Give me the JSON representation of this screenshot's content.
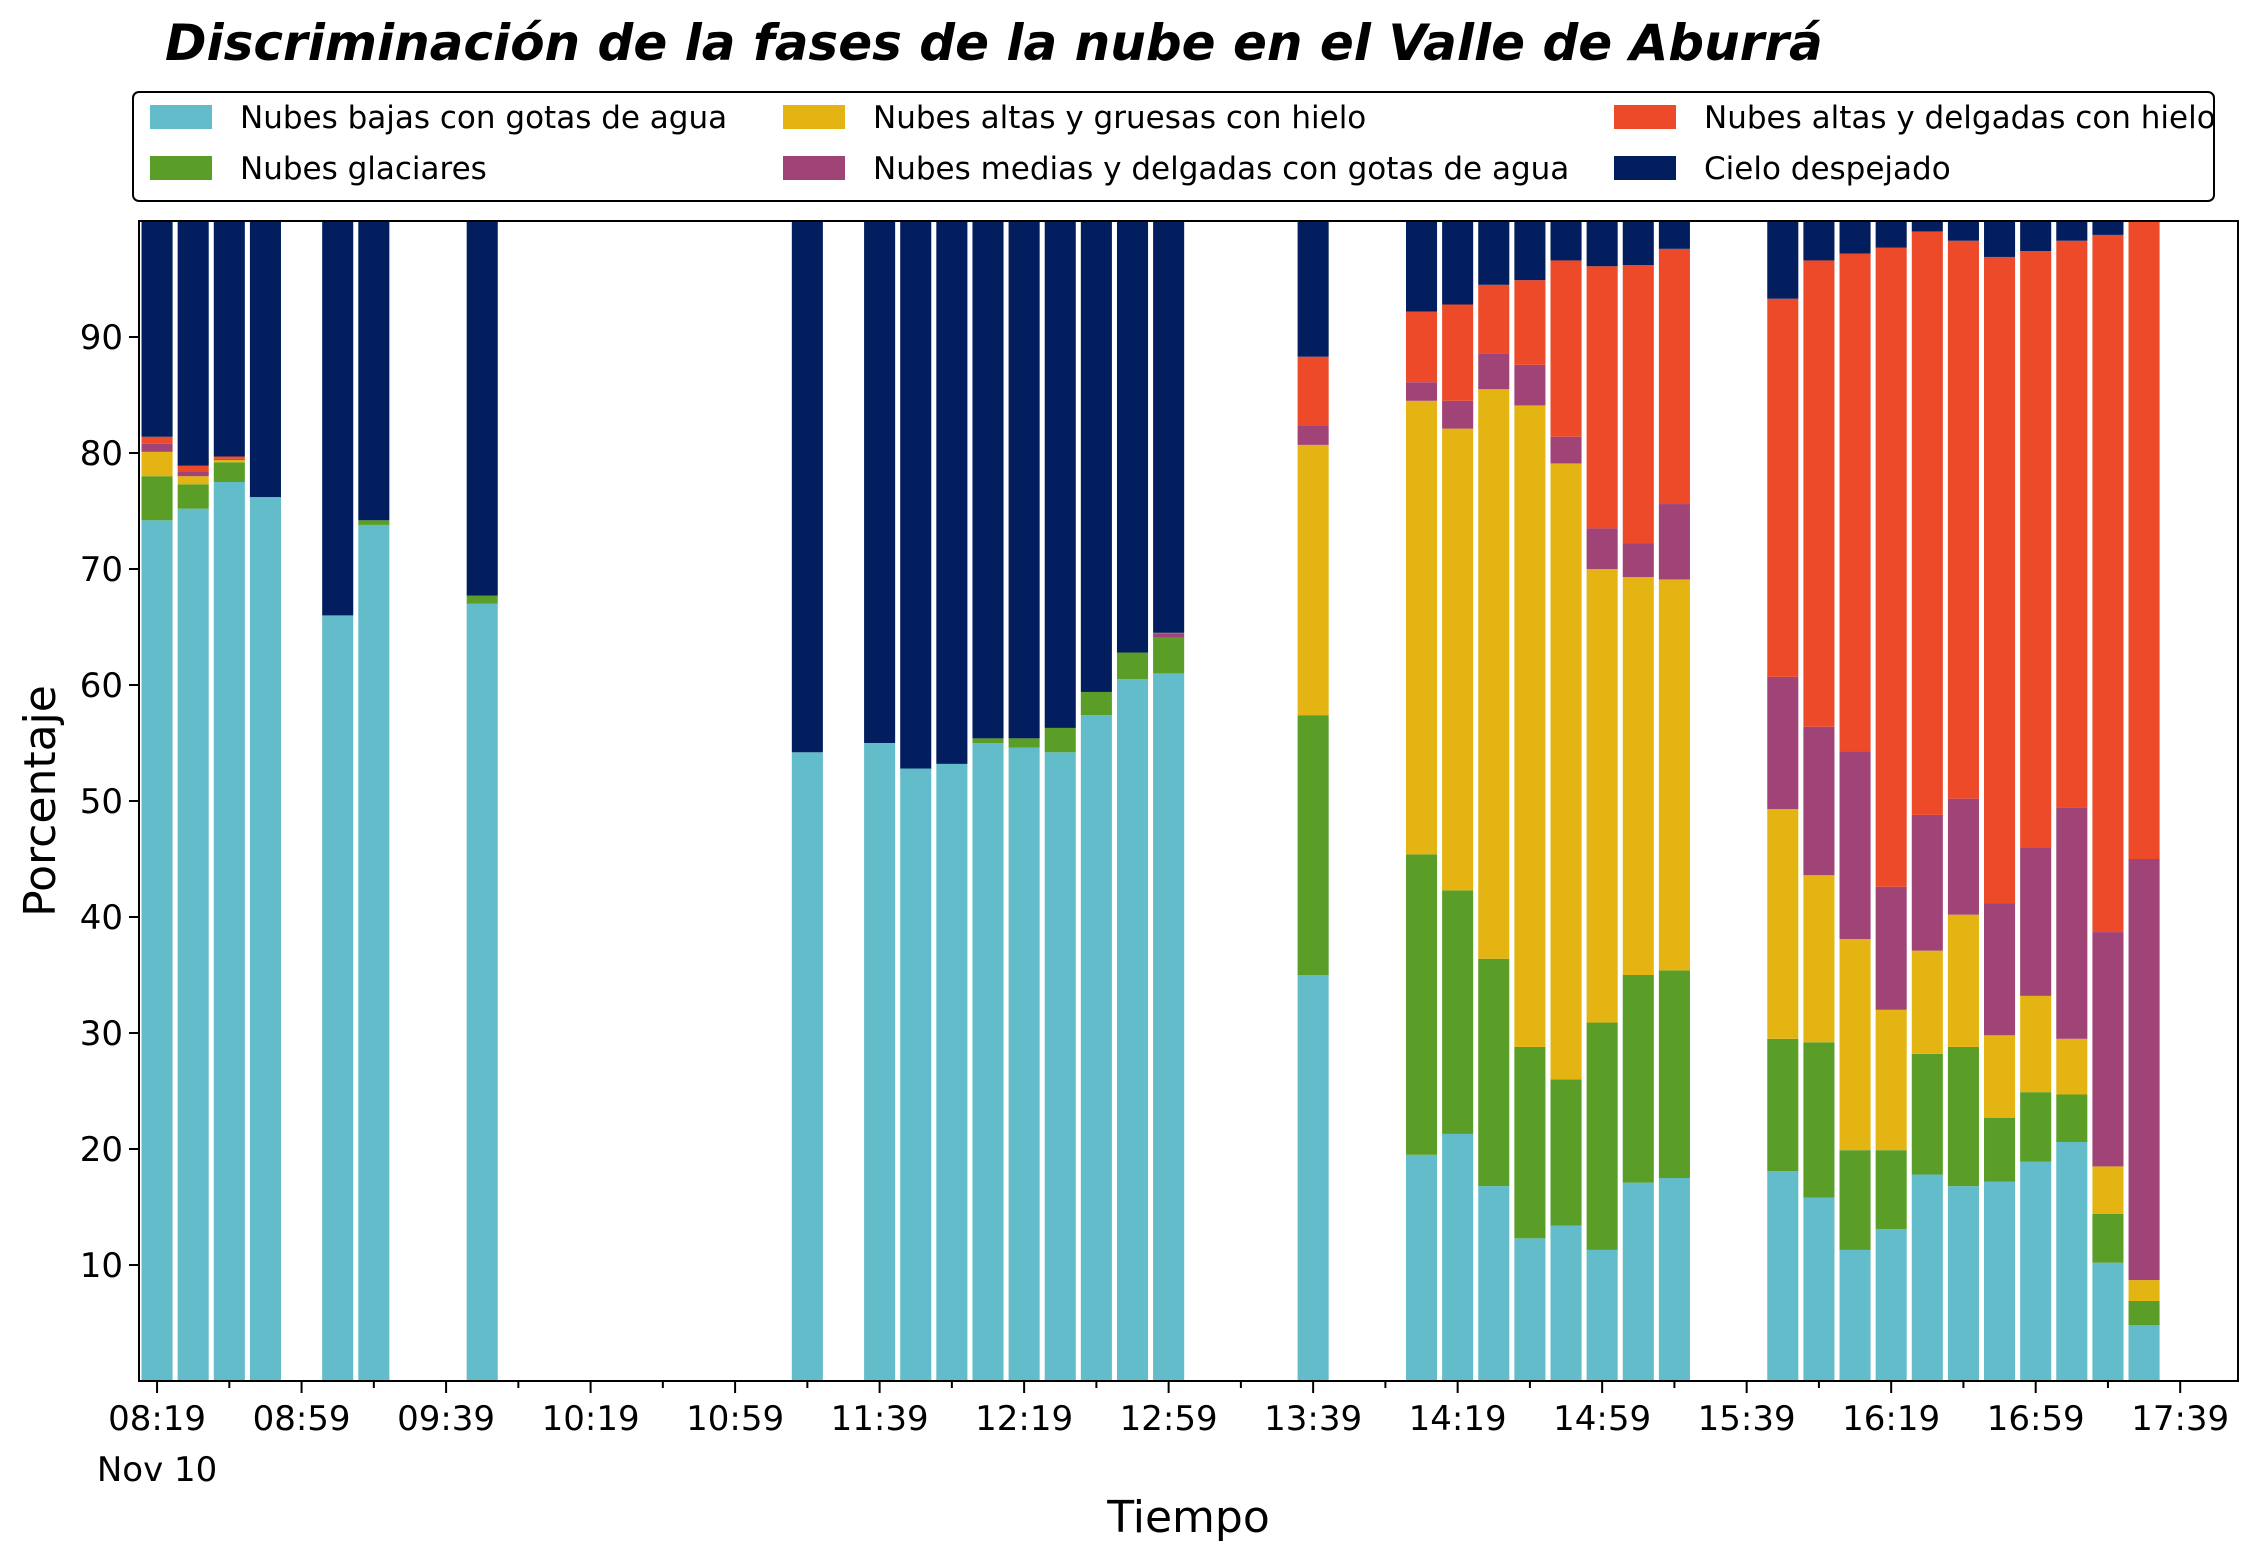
{
  "chart_data": {
    "type": "bar",
    "stacked": true,
    "title": "Discriminación de la fases de la nube en el Valle de Aburrá",
    "xlabel": "Tiempo",
    "ylabel": "Porcentaje",
    "ylim": [
      0,
      100
    ],
    "yticks": [
      10,
      20,
      30,
      40,
      50,
      60,
      70,
      80,
      90
    ],
    "x_tick_labels": [
      "08:19",
      "08:59",
      "09:39",
      "10:19",
      "10:59",
      "11:39",
      "12:19",
      "12:59",
      "13:39",
      "14:19",
      "14:59",
      "15:39",
      "16:19",
      "16:59",
      "17:39"
    ],
    "x_date_label": "Nov 10",
    "x_first_minute": 499,
    "x_step_minutes": 10,
    "x_end_minute": 1075,
    "legend_position": "top",
    "grid": false,
    "series": [
      {
        "name": "Nubes bajas con gotas de agua",
        "color": "#63bcc9"
      },
      {
        "name": "Nubes glaciares",
        "color": "#5a9e28"
      },
      {
        "name": "Nubes altas y gruesas con hielo",
        "color": "#e4b512"
      },
      {
        "name": "Nubes medias y delgadas con gotas de agua",
        "color": "#a04377"
      },
      {
        "name": "Nubes altas y delgadas con hielo",
        "color": "#ed4a2a"
      },
      {
        "name": "Cielo despejado",
        "color": "#021e5e"
      }
    ],
    "legend_order": [
      0,
      2,
      4,
      1,
      3,
      5
    ],
    "bars": [
      {
        "i": 0,
        "values": [
          74.2,
          3.8,
          2.1,
          0.7,
          0.6,
          18.6
        ]
      },
      {
        "i": 1,
        "values": [
          75.2,
          2.1,
          0.7,
          0.4,
          0.5,
          21.1
        ]
      },
      {
        "i": 2,
        "values": [
          77.5,
          1.7,
          0.2,
          0.1,
          0.2,
          20.3
        ]
      },
      {
        "i": 3,
        "values": [
          76.2,
          0,
          0,
          0,
          0,
          23.8
        ]
      },
      {
        "i": 5,
        "values": [
          66.0,
          0,
          0,
          0,
          0,
          34.0
        ]
      },
      {
        "i": 6,
        "values": [
          73.8,
          0.4,
          0,
          0,
          0,
          25.8
        ]
      },
      {
        "i": 9,
        "values": [
          67.0,
          0.7,
          0,
          0,
          0,
          32.3
        ]
      },
      {
        "i": 18,
        "values": [
          54.2,
          0,
          0,
          0,
          0,
          45.8
        ]
      },
      {
        "i": 20,
        "values": [
          55.0,
          0,
          0,
          0,
          0,
          45.0
        ]
      },
      {
        "i": 21,
        "values": [
          52.8,
          0,
          0,
          0,
          0,
          47.2
        ]
      },
      {
        "i": 22,
        "values": [
          53.2,
          0,
          0,
          0,
          0,
          46.8
        ]
      },
      {
        "i": 23,
        "values": [
          55.0,
          0.4,
          0,
          0,
          0,
          44.6
        ]
      },
      {
        "i": 24,
        "values": [
          54.6,
          0.8,
          0,
          0,
          0,
          44.6
        ]
      },
      {
        "i": 25,
        "values": [
          54.2,
          2.1,
          0,
          0,
          0,
          43.7
        ]
      },
      {
        "i": 26,
        "values": [
          57.4,
          2.0,
          0,
          0,
          0,
          40.6
        ]
      },
      {
        "i": 27,
        "values": [
          60.5,
          2.3,
          0,
          0,
          0,
          37.2
        ]
      },
      {
        "i": 28,
        "values": [
          61.0,
          3.1,
          0,
          0.3,
          0.1,
          35.5
        ]
      },
      {
        "i": 32,
        "values": [
          35.0,
          22.4,
          23.3,
          1.7,
          5.9,
          11.7
        ]
      },
      {
        "i": 35,
        "values": [
          19.5,
          25.9,
          39.1,
          1.6,
          6.1,
          7.8
        ]
      },
      {
        "i": 36,
        "values": [
          21.3,
          21.0,
          39.8,
          2.4,
          8.3,
          7.2
        ]
      },
      {
        "i": 37,
        "values": [
          16.8,
          19.6,
          49.1,
          3.1,
          5.9,
          5.5
        ]
      },
      {
        "i": 38,
        "values": [
          12.3,
          16.5,
          55.3,
          3.5,
          7.3,
          5.1
        ]
      },
      {
        "i": 39,
        "values": [
          13.4,
          12.6,
          53.1,
          2.3,
          15.2,
          3.4
        ]
      },
      {
        "i": 40,
        "values": [
          11.3,
          19.6,
          39.1,
          3.5,
          22.6,
          3.9
        ]
      },
      {
        "i": 41,
        "values": [
          17.1,
          17.9,
          34.3,
          2.9,
          24.0,
          3.8
        ]
      },
      {
        "i": 42,
        "values": [
          17.5,
          17.9,
          33.7,
          6.5,
          22.0,
          2.4
        ]
      },
      {
        "i": 45,
        "values": [
          18.1,
          11.4,
          19.8,
          11.4,
          32.6,
          6.7
        ]
      },
      {
        "i": 46,
        "values": [
          15.8,
          13.4,
          14.4,
          12.8,
          40.2,
          3.4
        ]
      },
      {
        "i": 47,
        "values": [
          11.3,
          8.6,
          18.2,
          16.2,
          42.9,
          2.8
        ]
      },
      {
        "i": 48,
        "values": [
          13.1,
          6.8,
          12.1,
          10.6,
          55.1,
          2.3
        ]
      },
      {
        "i": 49,
        "values": [
          17.8,
          10.4,
          8.9,
          11.7,
          50.3,
          0.9
        ]
      },
      {
        "i": 50,
        "values": [
          16.8,
          12.0,
          11.4,
          10.0,
          48.1,
          1.7
        ]
      },
      {
        "i": 51,
        "values": [
          17.2,
          5.5,
          7.1,
          11.4,
          55.7,
          3.1
        ]
      },
      {
        "i": 52,
        "values": [
          18.9,
          6.0,
          8.3,
          12.8,
          51.4,
          2.6
        ]
      },
      {
        "i": 53,
        "values": [
          20.6,
          4.1,
          4.8,
          19.9,
          48.9,
          1.7
        ]
      },
      {
        "i": 54,
        "values": [
          10.2,
          4.2,
          4.1,
          20.2,
          60.1,
          1.2
        ]
      },
      {
        "i": 55,
        "values": [
          4.8,
          2.1,
          1.8,
          36.3,
          55.0,
          0.4
        ]
      }
    ]
  }
}
